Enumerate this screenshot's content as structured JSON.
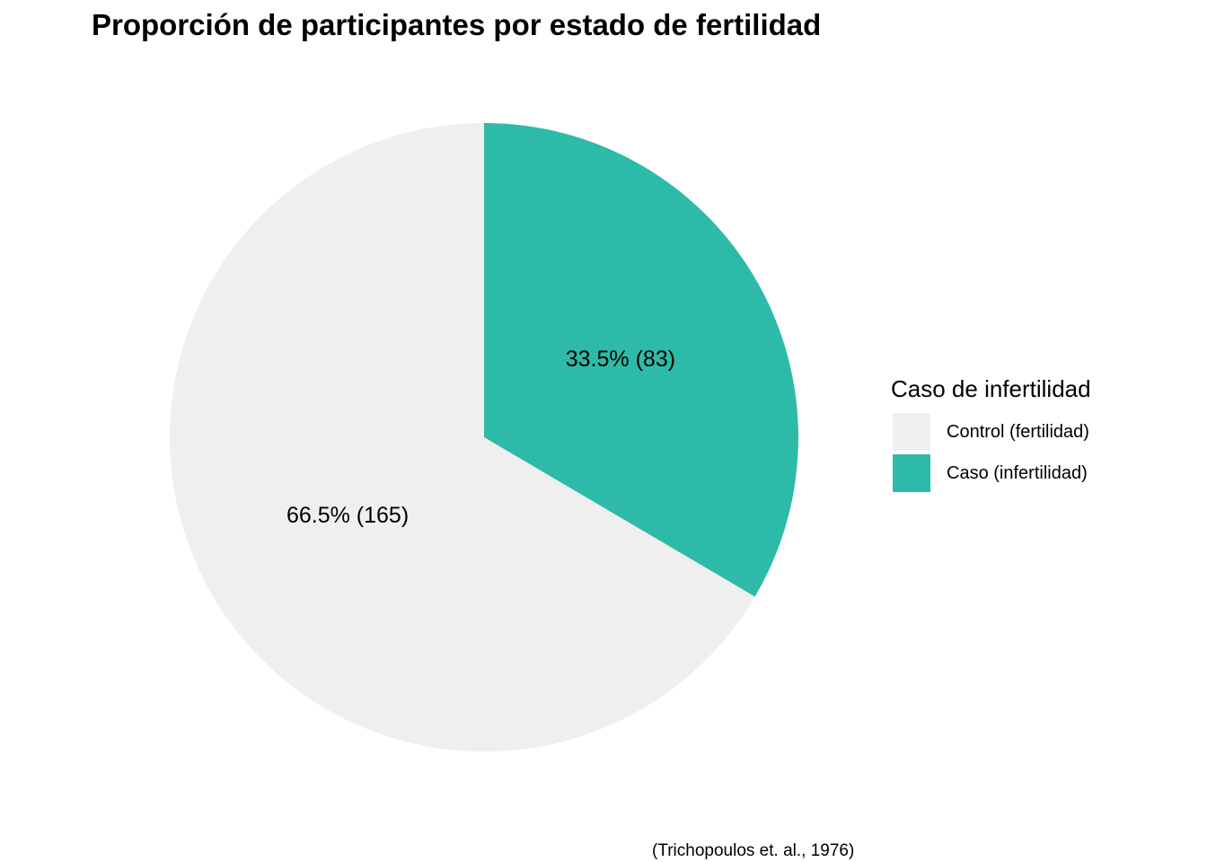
{
  "chart_data": {
    "type": "pie",
    "title": "Proporción de participantes por estado de fertilidad",
    "caption": "(Trichopoulos et. al., 1976)",
    "legend": {
      "title": "Caso de infertilidad",
      "position": "right"
    },
    "slices": [
      {
        "name": "Caso (infertilidad)",
        "value": 83,
        "percent": 33.5,
        "label": "33.5% (83)",
        "color": "#2EBAA8"
      },
      {
        "name": "Control (fertilidad)",
        "value": 165,
        "percent": 66.5,
        "label": "66.5% (165)",
        "color": "#EFEFEF"
      }
    ],
    "legend_order": [
      "Control (fertilidad)",
      "Caso (infertilidad)"
    ],
    "start": "12 o'clock",
    "direction": "clockwise"
  }
}
